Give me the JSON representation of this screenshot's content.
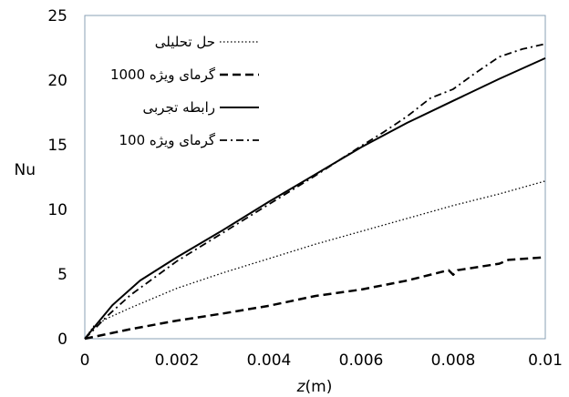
{
  "chart_data": {
    "type": "line",
    "xlabel_italic": "z",
    "xlabel_unit": "(m)",
    "ylabel": "Nu",
    "xlim": [
      0,
      0.01
    ],
    "ylim": [
      0,
      25
    ],
    "x_ticks": [
      "0",
      "0.002",
      "0.004",
      "0.006",
      "0.008",
      "0.01"
    ],
    "y_ticks": [
      "0",
      "5",
      "10",
      "15",
      "20",
      "25"
    ],
    "grid": false,
    "legend_position": "top-left",
    "series": [
      {
        "name": "حل تحلیلی",
        "style": "dotted",
        "x": [
          0,
          0.0002,
          0.0005,
          0.001,
          0.002,
          0.003,
          0.004,
          0.005,
          0.006,
          0.007,
          0.008,
          0.009,
          0.01
        ],
        "y": [
          0,
          1.0,
          1.6,
          2.4,
          3.9,
          5.1,
          6.2,
          7.3,
          8.3,
          9.3,
          10.3,
          11.2,
          12.2
        ]
      },
      {
        "name": "گرمای ویژه 1000",
        "style": "dashed",
        "x": [
          0,
          0.001,
          0.002,
          0.003,
          0.004,
          0.005,
          0.006,
          0.007,
          0.0079,
          0.008,
          0.0081,
          0.009,
          0.0092,
          0.01
        ],
        "y": [
          0,
          0.75,
          1.4,
          1.95,
          2.55,
          3.3,
          3.8,
          4.5,
          5.3,
          4.95,
          5.3,
          5.8,
          6.1,
          6.3
        ]
      },
      {
        "name": "رابطه تجربی",
        "style": "solid",
        "x": [
          0,
          0.0003,
          0.0006,
          0.0012,
          0.002,
          0.003,
          0.004,
          0.005,
          0.006,
          0.007,
          0.008,
          0.009,
          0.01
        ],
        "y": [
          0,
          1.3,
          2.6,
          4.5,
          6.3,
          8.4,
          10.6,
          12.7,
          14.8,
          16.7,
          18.4,
          20.1,
          21.7
        ]
      },
      {
        "name": "گرمای ویژه 100",
        "style": "dashdot",
        "x": [
          0,
          0.0005,
          0.001,
          0.002,
          0.003,
          0.004,
          0.005,
          0.006,
          0.0065,
          0.007,
          0.0075,
          0.008,
          0.0085,
          0.009,
          0.0095,
          0.01
        ],
        "y": [
          0,
          1.8,
          3.4,
          6.0,
          8.2,
          10.4,
          12.6,
          14.9,
          16.0,
          17.2,
          18.6,
          19.3,
          20.6,
          21.8,
          22.4,
          22.8
        ]
      }
    ]
  }
}
